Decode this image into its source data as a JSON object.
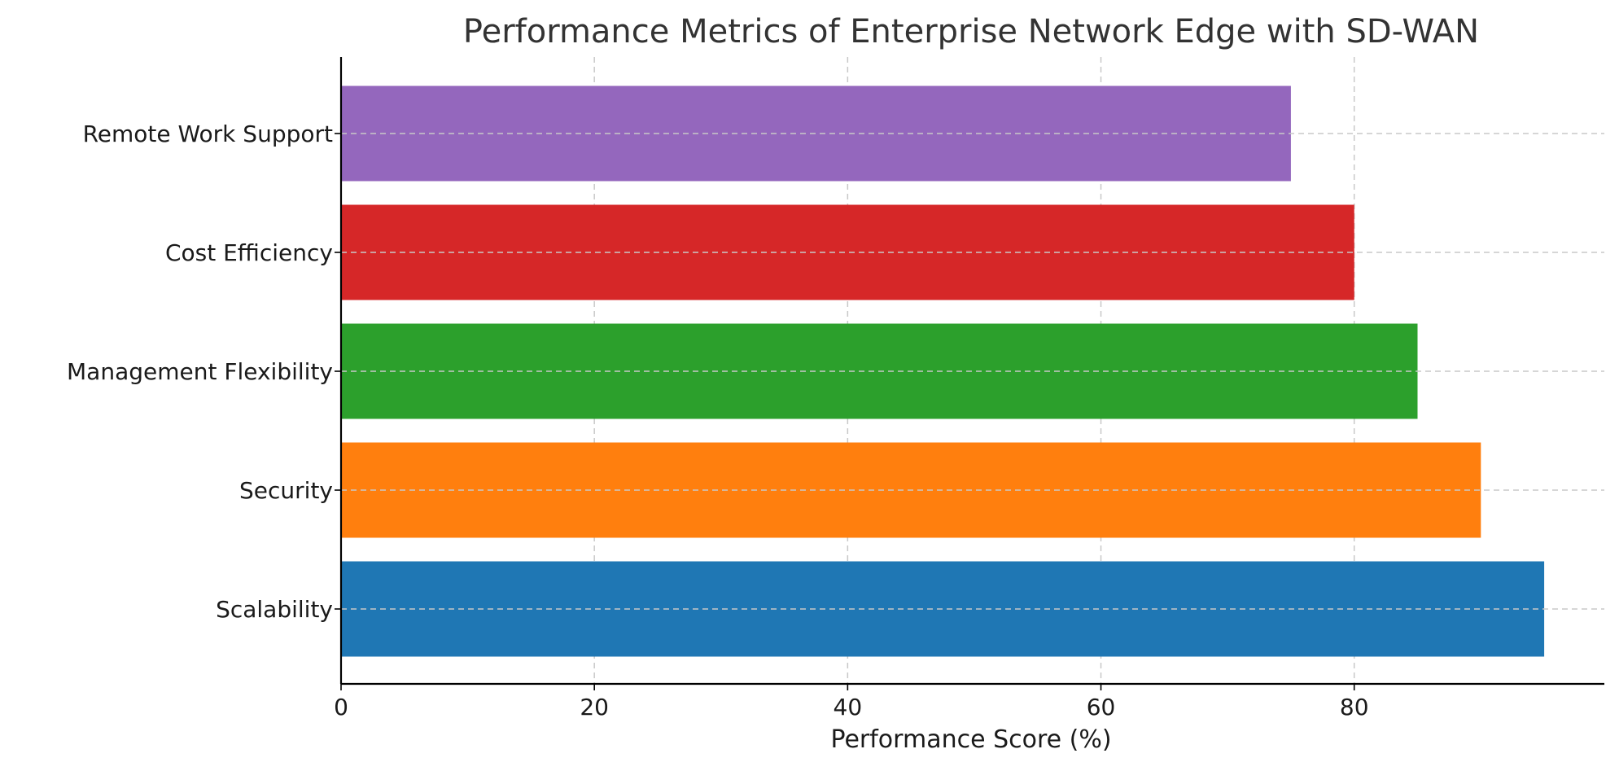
{
  "chart_data": {
    "type": "bar",
    "orientation": "horizontal",
    "title": "Performance Metrics of Enterprise Network Edge with SD-WAN",
    "xlabel": "Performance Score (%)",
    "ylabel": "",
    "categories": [
      "Scalability",
      "Security",
      "Management Flexibility",
      "Cost Efficiency",
      "Remote Work Support"
    ],
    "values": [
      95,
      90,
      85,
      80,
      75
    ],
    "colors": [
      "#1f77b4",
      "#ff7f0e",
      "#2ca02c",
      "#d62728",
      "#9467bd"
    ],
    "xlim": [
      0,
      99.75
    ],
    "xticks": [
      0,
      20,
      40,
      60,
      80
    ],
    "grid": true
  }
}
